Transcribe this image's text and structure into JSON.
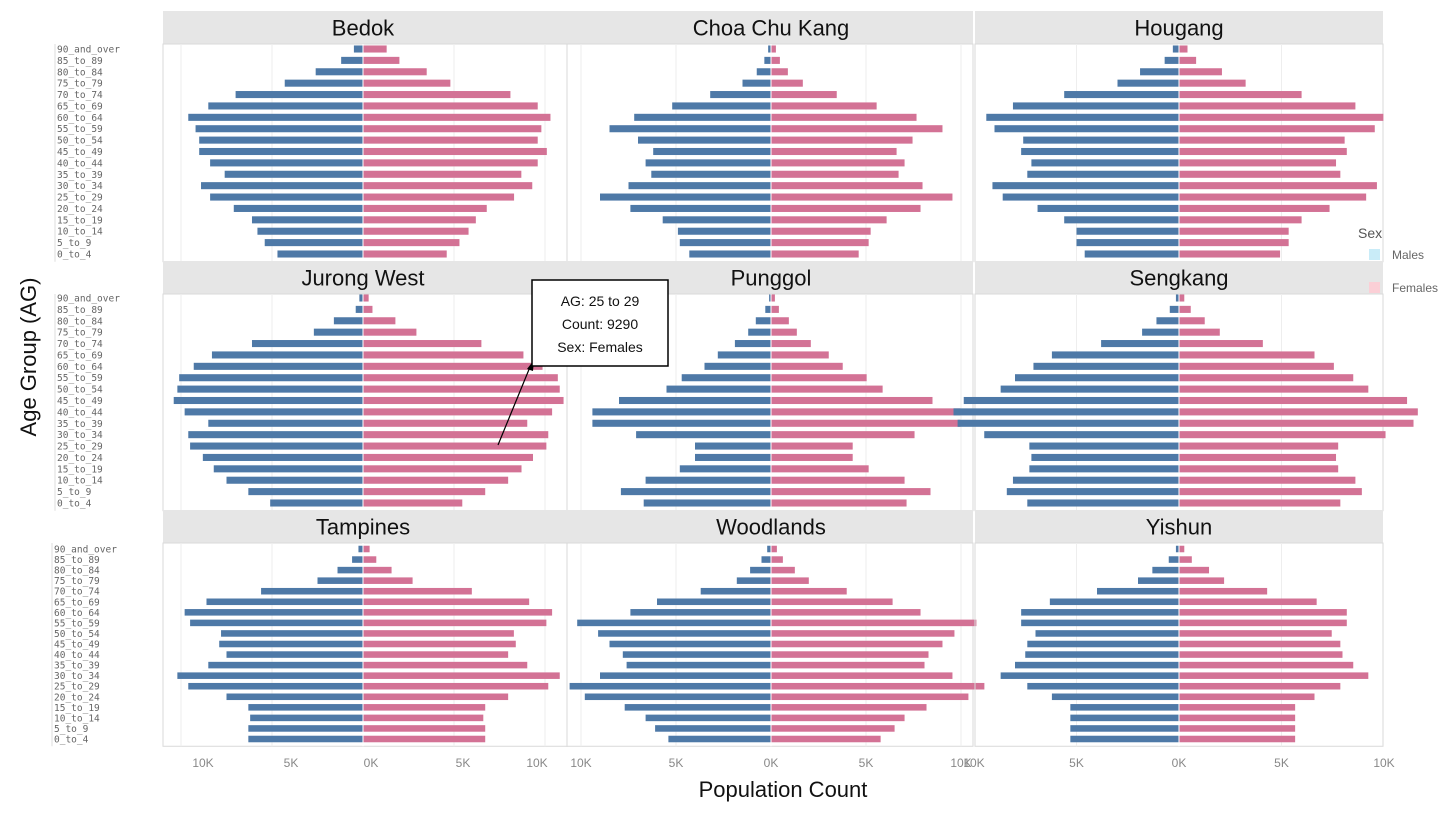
{
  "colors": {
    "males": "#4e79a7",
    "females": "#d37295",
    "header_bg": "#e6e6e6",
    "legend_males": "#c9ecf8",
    "legend_females": "#fbcfd6"
  },
  "legend": {
    "title": "Sex",
    "items": [
      "Males",
      "Females"
    ]
  },
  "xlabel": "Population Count",
  "ylabel": "Age Group (AG)",
  "x_ticks": [
    "10K",
    "5K",
    "0K",
    "5K",
    "10K"
  ],
  "tooltip": {
    "line1": "AG: 25 to 29",
    "line2": "Count: 9290",
    "line3": "Sex: Females"
  },
  "chart_data": {
    "type": "bar",
    "orientation": "horizontal",
    "layout": "population pyramid small multiples",
    "categories": [
      "90_and_over",
      "85_to_89",
      "80_to_84",
      "75_to_79",
      "70_to_74",
      "65_to_69",
      "60_to_64",
      "55_to_59",
      "50_to_54",
      "45_to_49",
      "40_to_44",
      "35_to_39",
      "30_to_34",
      "25_to_29",
      "20_to_24",
      "15_to_19",
      "10_to_14",
      "5_to_9",
      "0_to_4"
    ],
    "xlim": [
      -12000,
      12000
    ],
    "panels": [
      {
        "title": "Bedok",
        "males": [
          500,
          1200,
          2600,
          4300,
          7000,
          8500,
          9600,
          9200,
          9000,
          9000,
          8400,
          7600,
          8900,
          8400,
          7100,
          6100,
          5800,
          5400,
          4700
        ],
        "females": [
          1300,
          2000,
          3500,
          4800,
          8100,
          9600,
          10300,
          9800,
          9600,
          10100,
          9600,
          8700,
          9300,
          8300,
          6800,
          6200,
          5800,
          5300,
          4600
        ]
      },
      {
        "title": "Choa Chu Kang",
        "males": [
          150,
          350,
          750,
          1500,
          3200,
          5200,
          7200,
          8500,
          7000,
          6200,
          6600,
          6300,
          7500,
          9000,
          7400,
          5700,
          4900,
          4800,
          4300
        ]
      },
      {
        "title": "Hougang",
        "males": [
          300,
          700,
          1900,
          3000,
          5600,
          8100,
          9400,
          9000,
          7600,
          7700,
          7200,
          7400,
          9100,
          8600,
          6900,
          5600,
          5000,
          5000,
          4600
        ]
      },
      {
        "title": "Jurong West",
        "males": [
          200,
          400,
          1600,
          2700,
          6100,
          8300,
          9300,
          10100,
          10200,
          10400,
          9800,
          8500,
          9600,
          9500,
          8800,
          8200,
          7500,
          6300,
          5100
        ]
      },
      {
        "title": "Punggol",
        "males": [
          100,
          300,
          800,
          1200,
          1900,
          2800,
          3500,
          4700,
          5500,
          8000,
          9400,
          9400,
          7100,
          4000,
          4000,
          4800,
          6600,
          7900,
          6700
        ]
      },
      {
        "title": "Sengkang",
        "males": [
          150,
          450,
          1100,
          1800,
          3800,
          6200,
          7100,
          8000,
          8700,
          10500,
          11000,
          10800,
          9500,
          7300,
          7200,
          7300,
          8100,
          8400,
          7400
        ]
      },
      {
        "title": "Tampines",
        "males": [
          250,
          600,
          1400,
          2500,
          5600,
          8600,
          9800,
          9500,
          7800,
          7900,
          7500,
          8500,
          10200,
          9600,
          7500,
          6300,
          6200,
          6300,
          6300
        ]
      },
      {
        "title": "Woodlands",
        "males": [
          200,
          500,
          1100,
          1800,
          3700,
          6000,
          7400,
          10200,
          9100,
          8500,
          7800,
          7600,
          9000,
          10600,
          9800,
          7700,
          6600,
          6100,
          5400
        ]
      },
      {
        "title": "Yishun",
        "males": [
          150,
          500,
          1300,
          2000,
          4000,
          6300,
          7700,
          7700,
          7000,
          7400,
          7500,
          8000,
          8700,
          7400,
          6200,
          5300,
          5300,
          5300,
          5300
        ]
      }
    ]
  }
}
